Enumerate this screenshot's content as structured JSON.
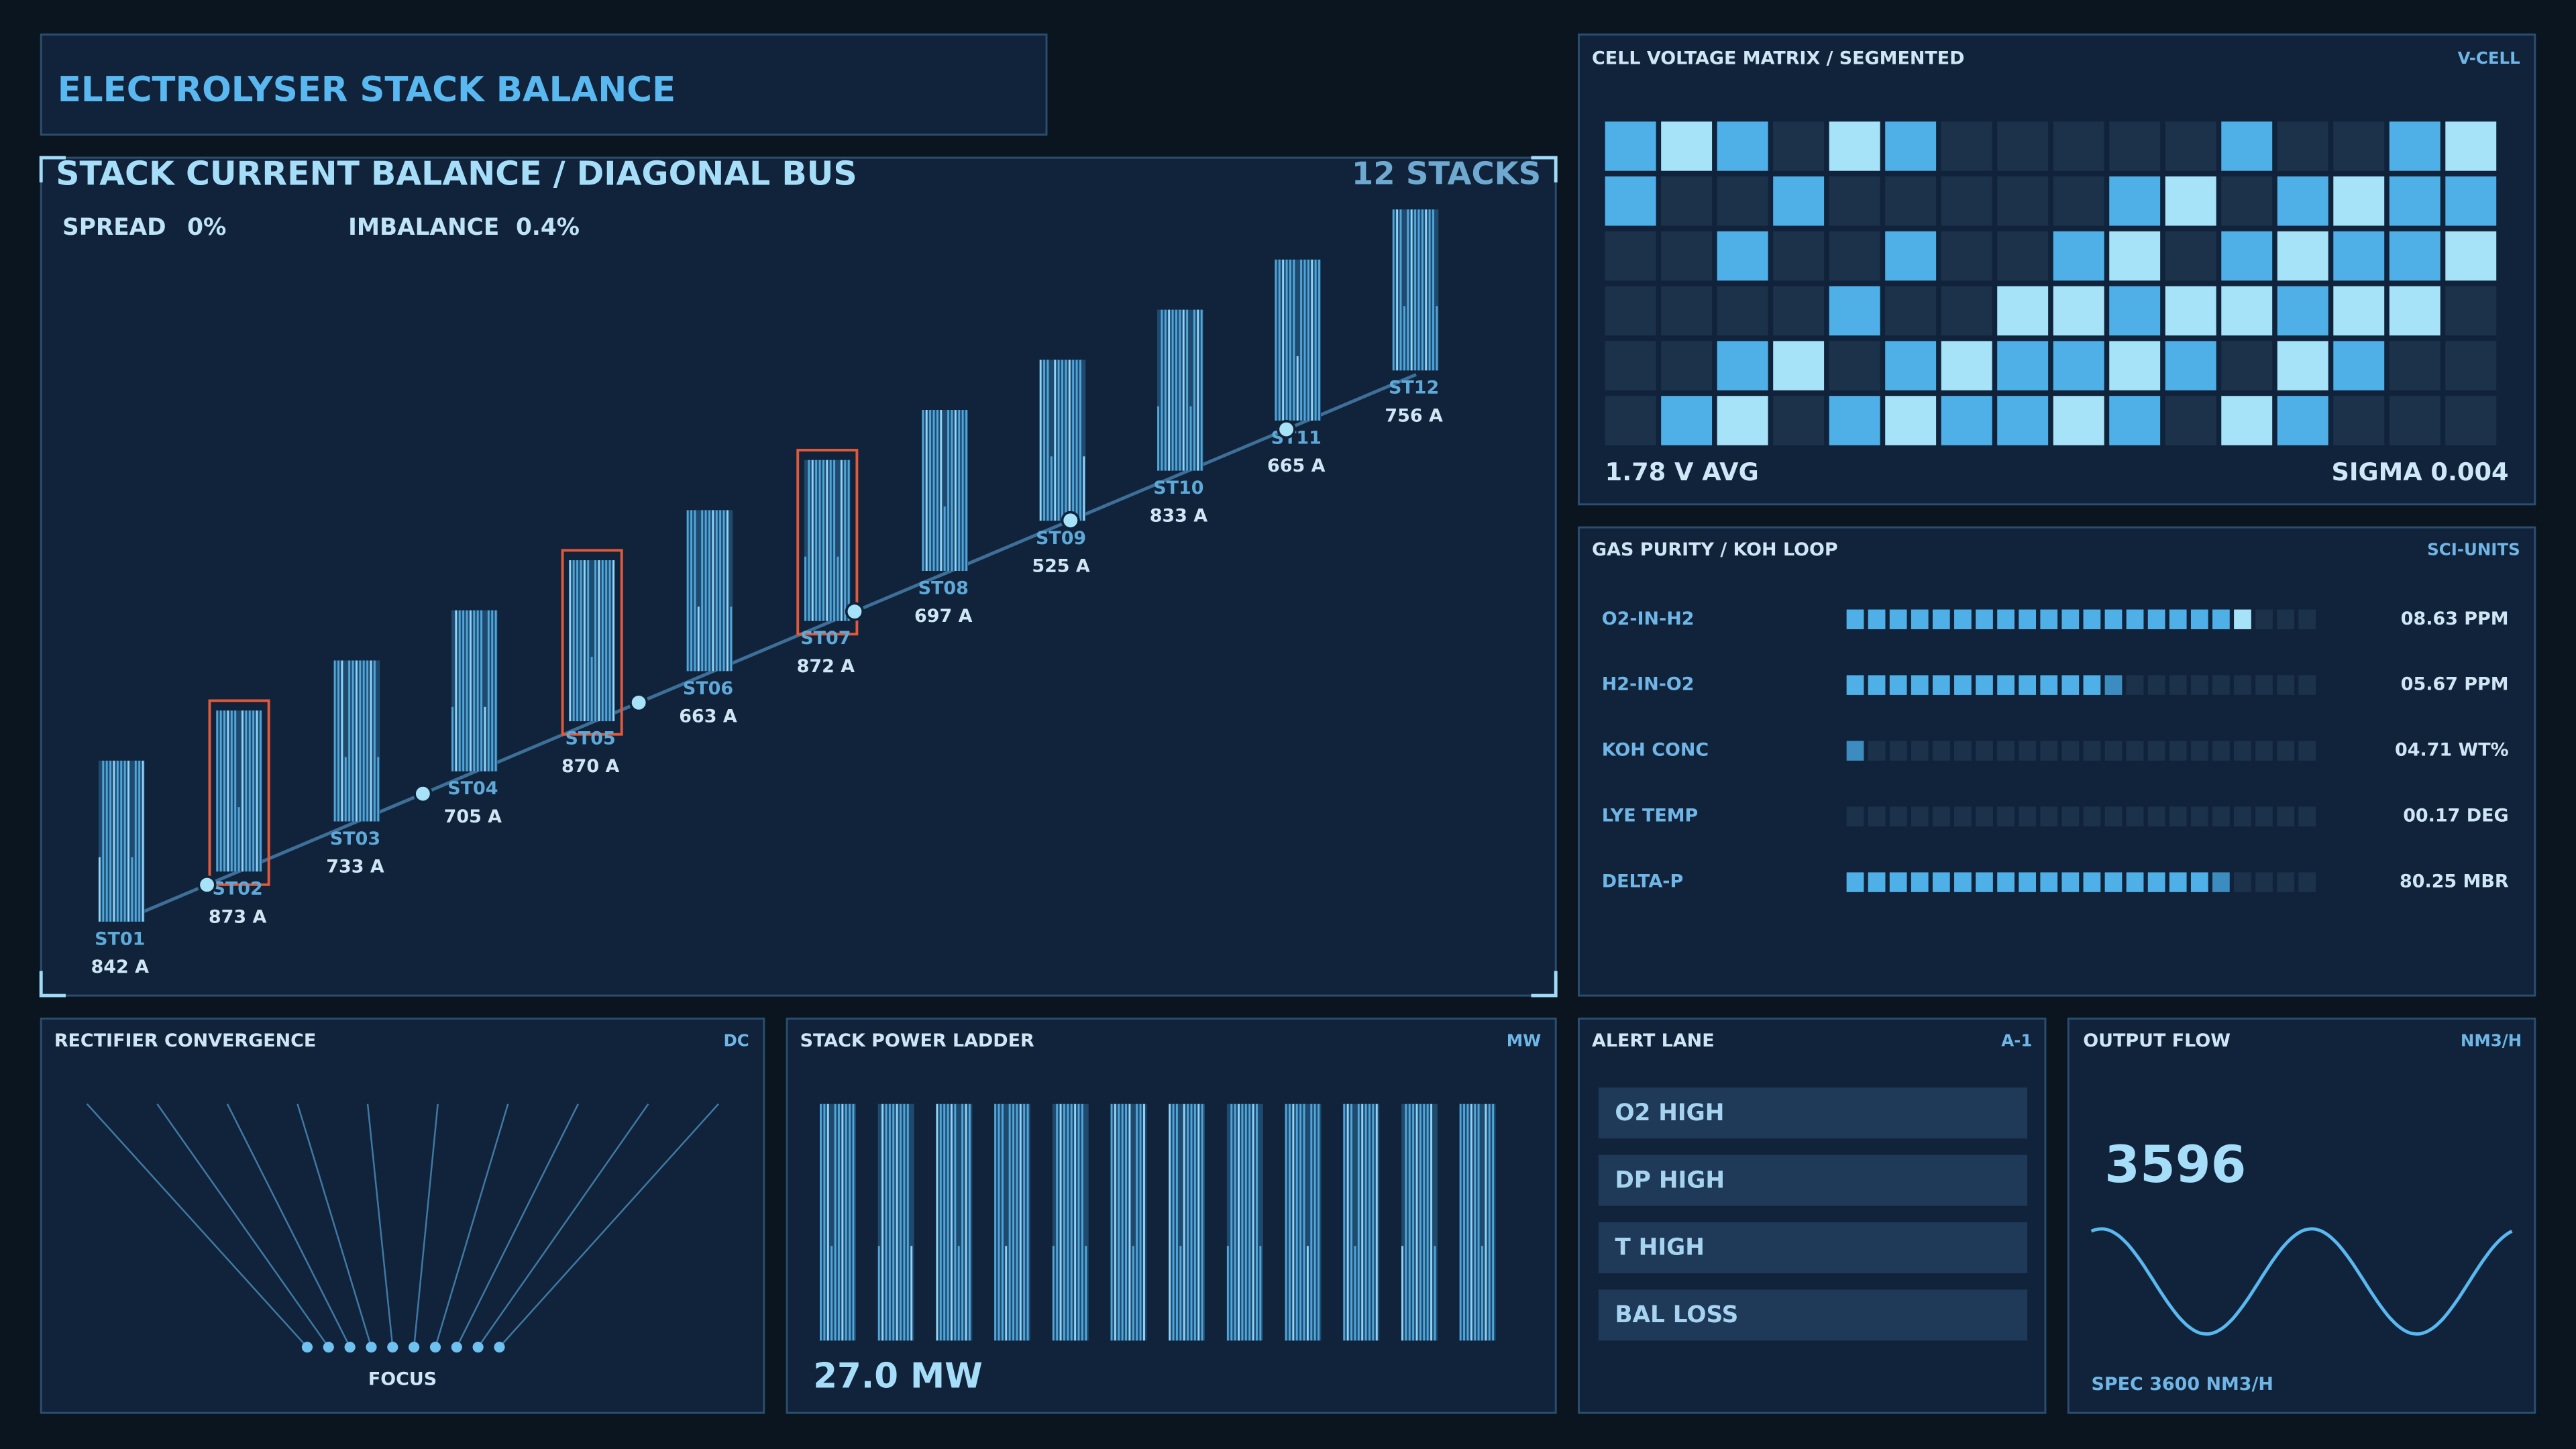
{
  "header": {
    "title": "ELECTROLYSER STACK BALANCE"
  },
  "stack_balance": {
    "title": "STACK CURRENT BALANCE / DIAGONAL BUS",
    "badge": "12 STACKS",
    "spread_label": "SPREAD",
    "spread": "0%",
    "imbalance_label": "IMBALANCE",
    "imbalance": "0.4%",
    "stacks": [
      {
        "name": "ST01",
        "current": "842 A",
        "flagged": false
      },
      {
        "name": "ST02",
        "current": "873 A",
        "flagged": true
      },
      {
        "name": "ST03",
        "current": "733 A",
        "flagged": false
      },
      {
        "name": "ST04",
        "current": "705 A",
        "flagged": false
      },
      {
        "name": "ST05",
        "current": "870 A",
        "flagged": true
      },
      {
        "name": "ST06",
        "current": "663 A",
        "flagged": false
      },
      {
        "name": "ST07",
        "current": "872 A",
        "flagged": true
      },
      {
        "name": "ST08",
        "current": "697 A",
        "flagged": false
      },
      {
        "name": "ST09",
        "current": "525 A",
        "flagged": false
      },
      {
        "name": "ST10",
        "current": "833 A",
        "flagged": false
      },
      {
        "name": "ST11",
        "current": "665 A",
        "flagged": false
      },
      {
        "name": "ST12",
        "current": "756 A",
        "flagged": false
      }
    ]
  },
  "cell_matrix": {
    "title": "CELL VOLTAGE MATRIX / SEGMENTED",
    "badge": "V-CELL",
    "average": "1.78 V AVG",
    "sigma": "SIGMA 0.004",
    "level_colors": [
      "#1c324b",
      "#4fb0e8",
      "#a6e2f8"
    ],
    "levels": [
      [
        1,
        2,
        1,
        0,
        2,
        1,
        0,
        0,
        0,
        0,
        0,
        1,
        0,
        0,
        1,
        2
      ],
      [
        1,
        0,
        0,
        1,
        0,
        0,
        0,
        0,
        0,
        1,
        2,
        0,
        1,
        2,
        1,
        1
      ],
      [
        0,
        0,
        1,
        0,
        0,
        1,
        0,
        0,
        1,
        2,
        0,
        1,
        2,
        1,
        1,
        2
      ],
      [
        0,
        0,
        0,
        0,
        1,
        0,
        0,
        2,
        2,
        1,
        2,
        2,
        1,
        2,
        2,
        0
      ],
      [
        0,
        0,
        1,
        2,
        0,
        1,
        2,
        1,
        1,
        2,
        1,
        0,
        2,
        1,
        0,
        0
      ],
      [
        0,
        1,
        2,
        0,
        1,
        2,
        1,
        1,
        2,
        1,
        0,
        2,
        1,
        0,
        0,
        0
      ]
    ]
  },
  "gas_purity": {
    "title": "GAS PURITY / KOH LOOP",
    "badge": "SCI-UNITS",
    "segments": 22,
    "rows": [
      {
        "name": "O2-IN-H2",
        "lit": 19,
        "value": "08.63 PPM"
      },
      {
        "name": "H2-IN-O2",
        "lit": 13,
        "value": "05.67 PPM"
      },
      {
        "name": "KOH CONC",
        "lit": 1,
        "value": "04.71 WT%"
      },
      {
        "name": "LYE TEMP",
        "lit": 0,
        "value": "00.17 DEG"
      },
      {
        "name": "DELTA-P",
        "lit": 18,
        "value": "80.25 MBR"
      }
    ]
  },
  "rectifier": {
    "title": "RECTIFIER CONVERGENCE",
    "badge": "DC",
    "focus": "FOCUS"
  },
  "power_ladder": {
    "title": "STACK POWER LADDER",
    "badge": "MW",
    "total": "27.0 MW"
  },
  "alert_lane": {
    "title": "ALERT LANE",
    "badge": "A-1",
    "alerts": [
      "O2 HIGH",
      "DP HIGH",
      "T HIGH",
      "BAL LOSS"
    ]
  },
  "output_flow": {
    "title": "OUTPUT FLOW",
    "badge": "NM3/H",
    "value": "3596",
    "spec": "SPEC 3600 NM3/H"
  }
}
